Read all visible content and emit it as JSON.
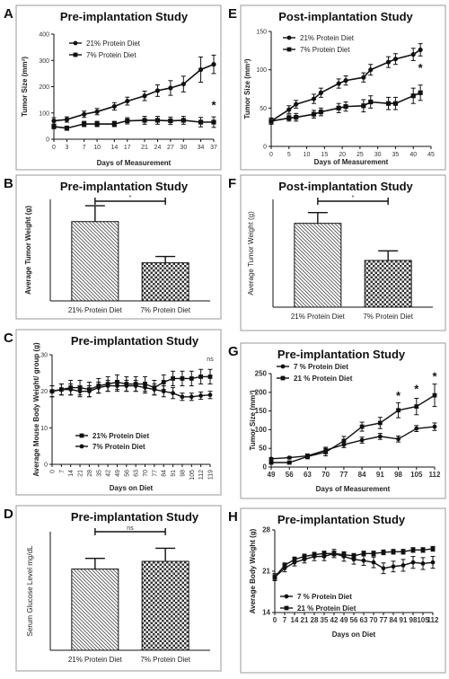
{
  "chart_data": [
    {
      "panel": "A",
      "type": "line",
      "title": "Pre-implantation Study",
      "xlabel": "Days of Measurement",
      "ylabel": "Tumor Size (mm³)",
      "x": [
        0,
        3,
        7,
        10,
        14,
        17,
        21,
        24,
        27,
        30,
        34,
        37
      ],
      "xticks": [
        "0",
        "3",
        "7",
        "10",
        "14",
        "17",
        "21",
        "24",
        "27",
        "30",
        "34",
        "37"
      ],
      "ylim": [
        0,
        400
      ],
      "yticks": [
        0,
        100,
        200,
        300,
        400
      ],
      "series": [
        {
          "name": "21% Protein Diet",
          "marker": "circle",
          "values": [
            70,
            75,
            95,
            105,
            125,
            145,
            165,
            185,
            195,
            210,
            265,
            285
          ],
          "err": [
            12,
            10,
            12,
            12,
            14,
            15,
            18,
            22,
            28,
            30,
            48,
            35
          ]
        },
        {
          "name": "7% Protein Diet",
          "marker": "square",
          "values": [
            48,
            42,
            58,
            58,
            58,
            70,
            72,
            72,
            70,
            72,
            65,
            65
          ],
          "err": [
            8,
            8,
            10,
            10,
            10,
            12,
            15,
            15,
            14,
            15,
            18,
            20
          ]
        }
      ],
      "annotations": [
        "*"
      ]
    },
    {
      "panel": "B",
      "type": "bar",
      "title": "Pre-implantation Study",
      "ylabel": "Average Tumor Weight (g)",
      "categories": [
        "21% Protein Diet",
        "7% Protein Diet"
      ],
      "values": [
        1.25,
        0.6
      ],
      "err": [
        0.25,
        0.1
      ],
      "ylim": [
        0,
        1.6
      ],
      "annotations": [
        "*"
      ]
    },
    {
      "panel": "C",
      "type": "line",
      "title": "Pre-implantation Study",
      "xlabel": "Days on Diet",
      "ylabel": "Average Mouse Body Weight/ group (g)",
      "x": [
        0,
        7,
        14,
        21,
        28,
        35,
        42,
        49,
        56,
        63,
        70,
        77,
        84,
        91,
        98,
        105,
        112,
        119
      ],
      "xticks": [
        "0",
        "7",
        "14",
        "21",
        "28",
        "35",
        "42",
        "49",
        "56",
        "63",
        "70",
        "77",
        "84",
        "91",
        "98",
        "105",
        "112",
        "119"
      ],
      "ylim": [
        0,
        30
      ],
      "yticks": [
        0,
        10,
        20,
        30
      ],
      "series": [
        {
          "name": "21% Protein Diet",
          "marker": "square",
          "values": [
            20,
            20.5,
            21,
            21,
            20.5,
            21.5,
            22,
            22.5,
            22,
            22,
            22,
            21,
            22.5,
            23.5,
            23.5,
            23.5,
            24,
            24
          ],
          "err": [
            1.5,
            1.5,
            2,
            2,
            2,
            2,
            2,
            2,
            2,
            2,
            2,
            2,
            2,
            2,
            2,
            2,
            2,
            2
          ]
        },
        {
          "name": "7% Protein Diet",
          "marker": "circle",
          "values": [
            20,
            20.5,
            20.5,
            20,
            20,
            21,
            21.5,
            21.5,
            21.5,
            21.5,
            21,
            20.5,
            20,
            19.5,
            18.5,
            18.5,
            18.8,
            19
          ],
          "err": [
            1.5,
            1.5,
            1.5,
            1.5,
            1.5,
            1.5,
            1.5,
            1.5,
            1.5,
            1.5,
            1.5,
            1.5,
            1.5,
            1.5,
            1,
            1,
            1,
            1
          ]
        }
      ],
      "annotations": [
        "ns"
      ]
    },
    {
      "panel": "D",
      "type": "bar",
      "title": "Pre-implantation Study",
      "ylabel": "Serum Glucose Level mg/dL",
      "categories": [
        "21% Protein Diet",
        "7% Protein Diet"
      ],
      "values": [
        137,
        150
      ],
      "err": [
        18,
        22
      ],
      "ylim": [
        0,
        200
      ],
      "annotations": [
        "ns"
      ]
    },
    {
      "panel": "E",
      "type": "line",
      "title": "Post-implantation Study",
      "xlabel": "Days of Measurement",
      "ylabel": "Tumor Size (mm³)",
      "x": [
        0,
        5,
        7,
        12,
        14,
        19,
        21,
        26,
        28,
        33,
        35,
        40,
        42
      ],
      "xticks": [
        "0",
        "5",
        "10",
        "15",
        "20",
        "25",
        "30",
        "35",
        "40",
        "45"
      ],
      "ylim": [
        0,
        150
      ],
      "yticks": [
        0,
        50,
        100,
        150
      ],
      "series": [
        {
          "name": "21% Protein Diet",
          "marker": "circle",
          "values": [
            33,
            48,
            55,
            62,
            70,
            82,
            86,
            90,
            100,
            110,
            114,
            120,
            126
          ],
          "err": [
            4,
            5,
            5,
            6,
            6,
            6,
            6,
            6,
            7,
            7,
            7,
            8,
            8
          ]
        },
        {
          "name": "7% Protein Diet",
          "marker": "square",
          "values": [
            33,
            37,
            38,
            42,
            45,
            50,
            52,
            53,
            58,
            56,
            56,
            66,
            70
          ],
          "err": [
            4,
            4,
            5,
            5,
            5,
            6,
            6,
            8,
            8,
            8,
            8,
            10,
            10
          ]
        }
      ],
      "annotations": [
        "*"
      ]
    },
    {
      "panel": "F",
      "type": "bar",
      "title": "Post-implantation Study",
      "ylabel": "Average Tumor Weight (g)",
      "categories": [
        "21% Protein Diet",
        "7% Protein Diet"
      ],
      "values": [
        0.7,
        0.39
      ],
      "err": [
        0.09,
        0.08
      ],
      "ylim": [
        0,
        0.9
      ],
      "annotations": [
        "*"
      ]
    },
    {
      "panel": "G",
      "type": "line",
      "title": "Pre-implantation Study",
      "xlabel": "Days of Measurement",
      "ylabel": "Tumor Size (mm³)",
      "x": [
        49,
        56,
        63,
        70,
        77,
        84,
        91,
        98,
        105,
        112
      ],
      "xticks": [
        "49",
        "56",
        "63",
        "70",
        "77",
        "84",
        "91",
        "98",
        "105",
        "112"
      ],
      "ylim": [
        0,
        250
      ],
      "yticks": [
        0,
        50,
        100,
        150,
        200,
        250
      ],
      "series": [
        {
          "name": "7 % Protein Diet",
          "marker": "circle",
          "values": [
            22,
            25,
            30,
            45,
            60,
            72,
            82,
            75,
            103,
            108
          ],
          "err": [
            3,
            3,
            5,
            8,
            8,
            8,
            8,
            8,
            8,
            10
          ]
        },
        {
          "name": "21 % Protein Diet",
          "marker": "square",
          "values": [
            12,
            12,
            28,
            40,
            70,
            108,
            118,
            152,
            162,
            192
          ],
          "err": [
            3,
            3,
            6,
            10,
            12,
            12,
            15,
            20,
            22,
            30
          ]
        }
      ],
      "annotations": [
        "*",
        "*",
        "*"
      ]
    },
    {
      "panel": "H",
      "type": "line",
      "title": "Pre-implantation Study",
      "xlabel": "Days on Diet",
      "ylabel": "Average Body Weight  (g)",
      "x": [
        0,
        7,
        14,
        21,
        28,
        35,
        42,
        49,
        56,
        63,
        70,
        77,
        84,
        91,
        98,
        105,
        112
      ],
      "xticks": [
        "0",
        "7",
        "14",
        "21",
        "28",
        "35",
        "42",
        "49",
        "56",
        "63",
        "70",
        "77",
        "84",
        "91",
        "98",
        "105",
        "112"
      ],
      "ylim": [
        14,
        28
      ],
      "yticks": [
        14,
        21,
        28
      ],
      "series": [
        {
          "name": "7 % Protein Diet",
          "marker": "circle",
          "values": [
            20,
            21.5,
            22.5,
            23,
            23.5,
            23.5,
            24,
            23.5,
            23,
            22.8,
            22.5,
            21.5,
            21.8,
            22,
            22.5,
            22.3,
            22.5
          ],
          "err": [
            0.6,
            0.6,
            0.6,
            0.6,
            0.7,
            0.7,
            0.7,
            0.8,
            0.8,
            0.8,
            0.9,
            0.9,
            0.9,
            1,
            1,
            1,
            1
          ]
        },
        {
          "name": "21 % Protein Diet",
          "marker": "square",
          "values": [
            20,
            22,
            23,
            23.5,
            23.8,
            24,
            24,
            23.8,
            23.6,
            24,
            24,
            24.2,
            24.3,
            24.3,
            24.6,
            24.6,
            24.8
          ],
          "err": [
            0.4,
            0.4,
            0.4,
            0.4,
            0.4,
            0.4,
            0.4,
            0.4,
            0.4,
            0.4,
            0.4,
            0.4,
            0.4,
            0.4,
            0.4,
            0.4,
            0.4
          ]
        }
      ]
    }
  ]
}
